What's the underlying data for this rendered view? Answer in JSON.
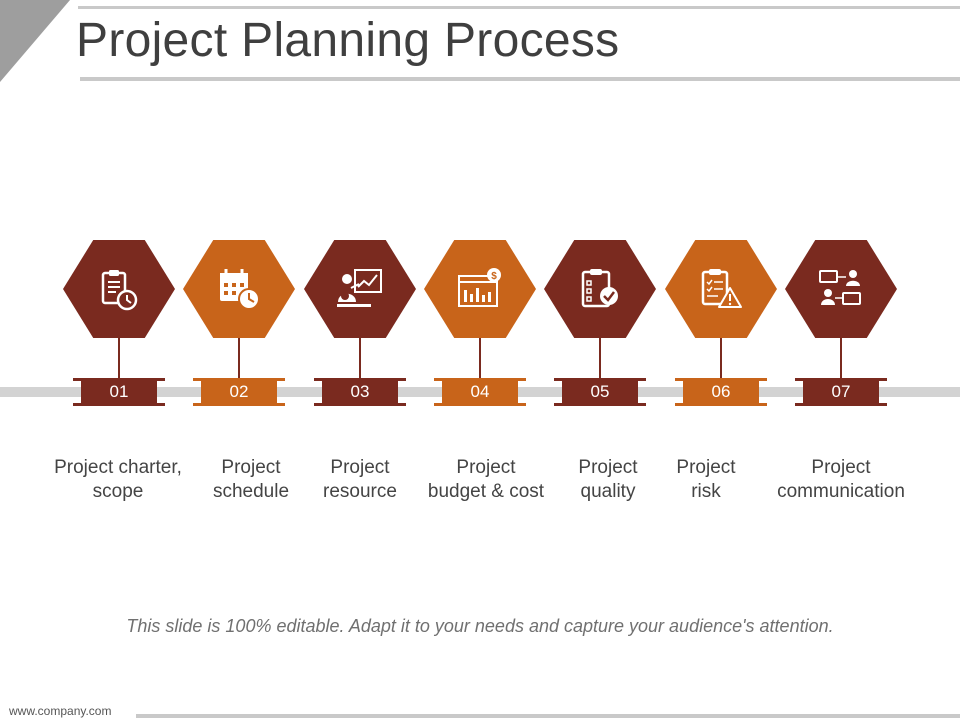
{
  "slide": {
    "title": "Project Planning Process",
    "footer_note": "This slide is 100% editable. Adapt it to your needs and capture your audience's attention.",
    "url": "www.company.com"
  },
  "colors": {
    "dark": "#7a2a1f",
    "orange": "#c8641a",
    "track": "#d3d3d3",
    "title": "#3f3f3f"
  },
  "steps": [
    {
      "number": "01",
      "label": "Project charter,\nscope",
      "icon": "clipboard-clock-icon",
      "color": "dark"
    },
    {
      "number": "02",
      "label": "Project\nschedule",
      "icon": "calendar-clock-icon",
      "color": "orange"
    },
    {
      "number": "03",
      "label": "Project\nresource",
      "icon": "presenter-chart-icon",
      "color": "dark"
    },
    {
      "number": "04",
      "label": "Project\nbudget & cost",
      "icon": "browser-budget-chart-icon",
      "color": "orange"
    },
    {
      "number": "05",
      "label": "Project\nquality",
      "icon": "checklist-approved-icon",
      "color": "dark"
    },
    {
      "number": "06",
      "label": "Project\nrisk",
      "icon": "checklist-warning-icon",
      "color": "orange"
    },
    {
      "number": "07",
      "label": "Project\ncommunication",
      "icon": "people-conversation-icon",
      "color": "dark"
    }
  ]
}
